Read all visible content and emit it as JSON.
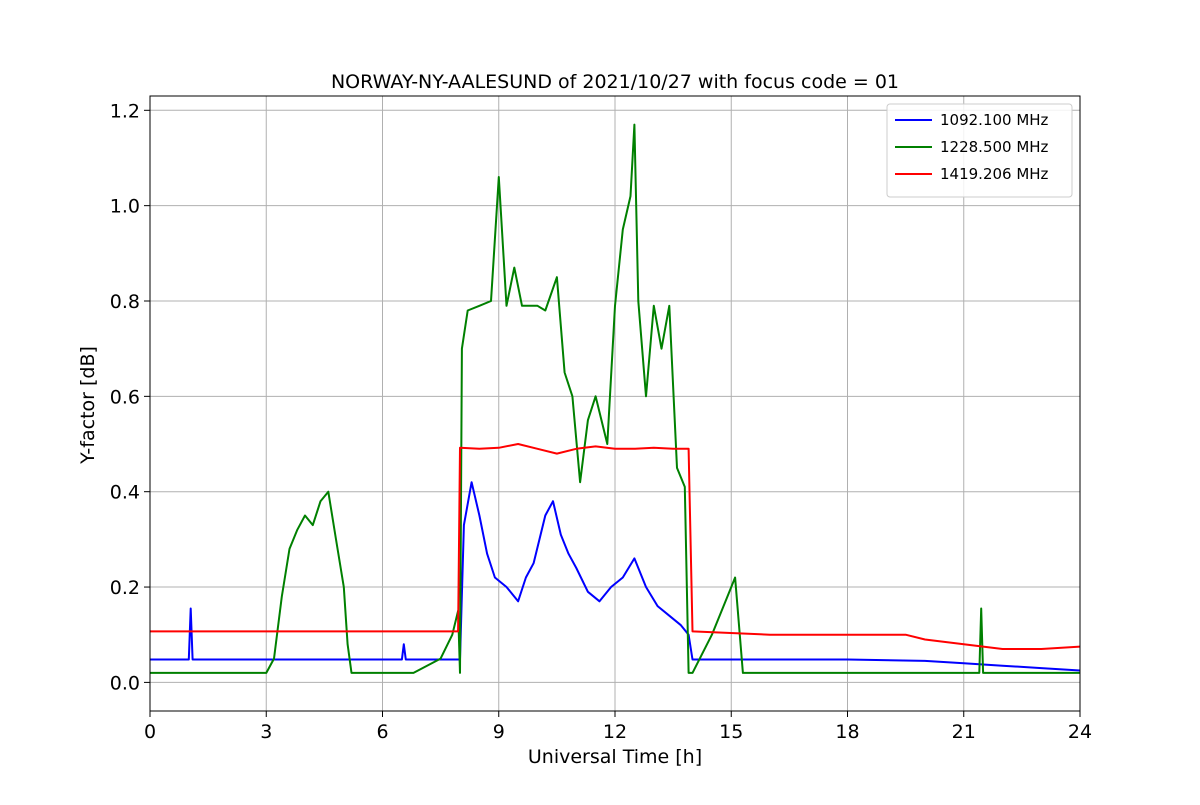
{
  "chart_data": {
    "type": "line",
    "title": "NORWAY-NY-AALESUND of 2021/10/27 with focus code = 01",
    "xlabel": "Universal Time [h]",
    "ylabel": "Y-factor [dB]",
    "xlim": [
      0,
      24
    ],
    "ylim": [
      -0.06,
      1.23
    ],
    "xticks": [
      0,
      3,
      6,
      9,
      12,
      15,
      18,
      21,
      24
    ],
    "xtick_labels": [
      "0",
      "3",
      "6",
      "9",
      "12",
      "15",
      "18",
      "21",
      "24"
    ],
    "yticks": [
      0.0,
      0.2,
      0.4,
      0.6,
      0.8,
      1.0,
      1.2
    ],
    "ytick_labels": [
      "0.0",
      "0.2",
      "0.4",
      "0.6",
      "0.8",
      "1.0",
      "1.2"
    ],
    "grid": true,
    "legend_position": "top-right",
    "series": [
      {
        "name": "1092.100 MHz",
        "color": "#0000ff",
        "x": [
          0,
          1.0,
          1.05,
          1.1,
          3.0,
          6.5,
          6.55,
          6.6,
          7.9,
          8.0,
          8.1,
          8.3,
          8.5,
          8.7,
          8.9,
          9.2,
          9.5,
          9.7,
          9.9,
          10.2,
          10.4,
          10.6,
          10.8,
          11.0,
          11.3,
          11.6,
          11.9,
          12.2,
          12.5,
          12.8,
          13.1,
          13.4,
          13.7,
          13.9,
          14.0,
          16.0,
          18.0,
          20.0,
          21.0,
          22.0,
          23.0,
          24.0
        ],
        "y": [
          0.048,
          0.048,
          0.155,
          0.048,
          0.048,
          0.048,
          0.08,
          0.048,
          0.048,
          0.048,
          0.33,
          0.42,
          0.35,
          0.27,
          0.22,
          0.2,
          0.17,
          0.22,
          0.25,
          0.35,
          0.38,
          0.31,
          0.27,
          0.24,
          0.19,
          0.17,
          0.2,
          0.22,
          0.26,
          0.2,
          0.16,
          0.14,
          0.12,
          0.1,
          0.048,
          0.048,
          0.048,
          0.045,
          0.04,
          0.035,
          0.03,
          0.025
        ]
      },
      {
        "name": "1228.500 MHz",
        "color": "#008000",
        "x": [
          0,
          3.0,
          3.2,
          3.4,
          3.6,
          3.8,
          4.0,
          4.2,
          4.4,
          4.6,
          4.8,
          5.0,
          5.1,
          5.2,
          6.8,
          7.5,
          7.8,
          7.95,
          8.0,
          8.05,
          8.2,
          8.5,
          8.8,
          9.0,
          9.2,
          9.4,
          9.6,
          9.8,
          10.0,
          10.2,
          10.5,
          10.7,
          10.9,
          11.1,
          11.3,
          11.5,
          11.8,
          12.0,
          12.2,
          12.4,
          12.5,
          12.6,
          12.8,
          13.0,
          13.2,
          13.4,
          13.6,
          13.8,
          13.9,
          14.0,
          14.5,
          14.9,
          15.1,
          15.3,
          16.0,
          20.0,
          21.4,
          21.45,
          21.5,
          22.0,
          24.0
        ],
        "y": [
          0.02,
          0.02,
          0.05,
          0.18,
          0.28,
          0.32,
          0.35,
          0.33,
          0.38,
          0.4,
          0.3,
          0.2,
          0.08,
          0.02,
          0.02,
          0.05,
          0.1,
          0.15,
          0.02,
          0.7,
          0.78,
          0.79,
          0.8,
          1.06,
          0.79,
          0.87,
          0.79,
          0.79,
          0.79,
          0.78,
          0.85,
          0.65,
          0.6,
          0.42,
          0.55,
          0.6,
          0.5,
          0.79,
          0.95,
          1.02,
          1.17,
          0.8,
          0.6,
          0.79,
          0.7,
          0.79,
          0.45,
          0.41,
          0.02,
          0.02,
          0.1,
          0.18,
          0.22,
          0.02,
          0.02,
          0.02,
          0.02,
          0.155,
          0.02,
          0.02,
          0.02
        ]
      },
      {
        "name": "1419.206 MHz",
        "color": "#ff0000",
        "x": [
          0,
          7.9,
          7.95,
          8.0,
          8.5,
          9.0,
          9.5,
          10.0,
          10.5,
          11.0,
          11.5,
          12.0,
          12.5,
          13.0,
          13.5,
          13.9,
          14.0,
          16.0,
          18.0,
          19.5,
          20.0,
          21.0,
          22.0,
          23.0,
          24.0
        ],
        "y": [
          0.107,
          0.107,
          0.107,
          0.492,
          0.49,
          0.492,
          0.5,
          0.49,
          0.48,
          0.49,
          0.495,
          0.49,
          0.49,
          0.492,
          0.49,
          0.49,
          0.107,
          0.1,
          0.1,
          0.1,
          0.09,
          0.08,
          0.07,
          0.07,
          0.075
        ]
      }
    ]
  }
}
